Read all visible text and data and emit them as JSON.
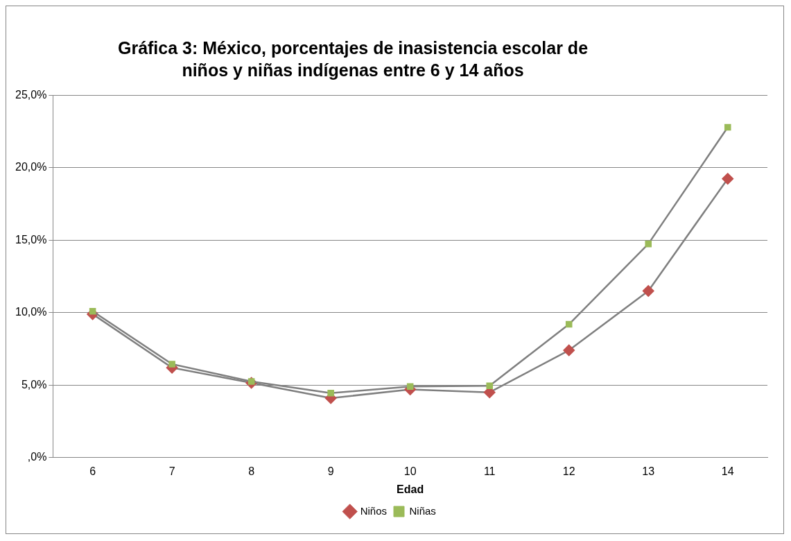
{
  "chart_data": {
    "type": "line",
    "title": "Gráfica 3: México, porcentajes de inasistencia escolar de niños y niñas indígenas entre 6 y 14 años",
    "xlabel": "Edad",
    "categories": [
      "6",
      "7",
      "8",
      "9",
      "10",
      "11",
      "12",
      "13",
      "14"
    ],
    "series": [
      {
        "name": "Niños",
        "color": "#c0504d",
        "marker": "diamond",
        "values": [
          9.9,
          6.2,
          5.15,
          4.1,
          4.7,
          4.5,
          7.4,
          11.5,
          19.25
        ]
      },
      {
        "name": "Niñas",
        "color": "#9bbb59",
        "marker": "square",
        "values": [
          10.1,
          6.45,
          5.25,
          4.45,
          4.9,
          4.95,
          9.2,
          14.75,
          22.8
        ]
      }
    ],
    "ylim": [
      0,
      25
    ],
    "yticks": [
      {
        "value": 0,
        "label": ",0%"
      },
      {
        "value": 5,
        "label": "5,0%"
      },
      {
        "value": 10,
        "label": "10,0%"
      },
      {
        "value": 15,
        "label": "15,0%"
      },
      {
        "value": 20,
        "label": "20,0%"
      },
      {
        "value": 25,
        "label": "25,0%"
      }
    ],
    "grid": "y",
    "legend": "bottom",
    "line_style": "solid"
  }
}
